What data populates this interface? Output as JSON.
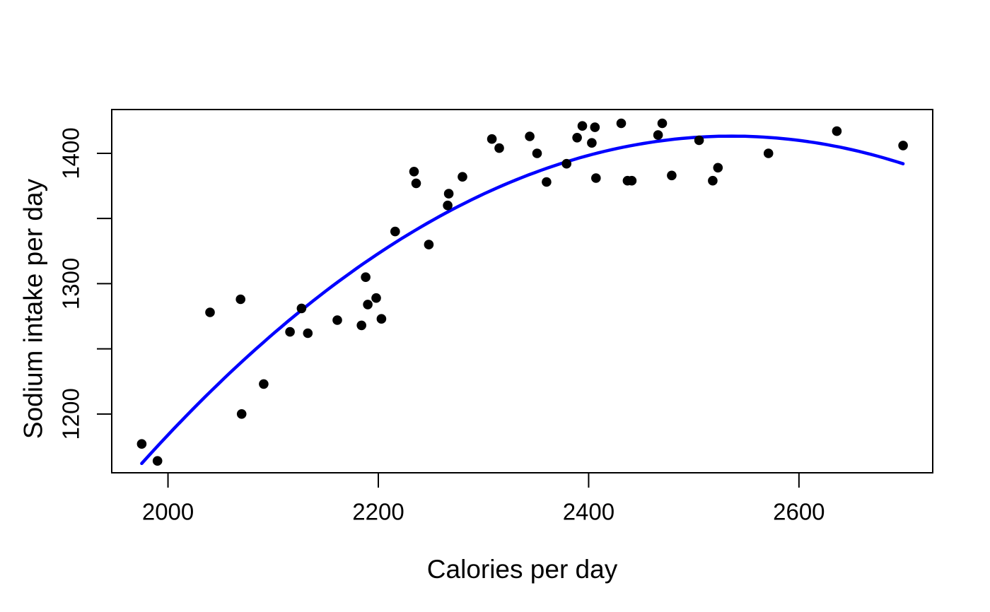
{
  "chart_data": {
    "type": "scatter",
    "title": "",
    "xlabel": "Calories per day",
    "ylabel": "Sodium intake per day",
    "xlim": [
      1946.5,
      2727.2
    ],
    "ylim": [
      1154.9,
      1433.6
    ],
    "x_ticks": [
      2000,
      2200,
      2400,
      2600
    ],
    "y_ticks_minor": [
      1200,
      1250,
      1300,
      1350,
      1400
    ],
    "y_ticks_labeled": [
      1200,
      1300,
      1400
    ],
    "grid": false,
    "legend": "none",
    "background_color": "#ffffff",
    "point_color": "#000000",
    "axis_color": "#000000",
    "trend_color": "#0000ff",
    "points": [
      [
        1975,
        1177
      ],
      [
        1990,
        1164
      ],
      [
        2040,
        1278
      ],
      [
        2069,
        1288
      ],
      [
        2070,
        1200
      ],
      [
        2091,
        1223
      ],
      [
        2116,
        1263
      ],
      [
        2127,
        1281
      ],
      [
        2133,
        1262
      ],
      [
        2161,
        1272
      ],
      [
        2184,
        1268
      ],
      [
        2188,
        1305
      ],
      [
        2190,
        1284
      ],
      [
        2198,
        1289
      ],
      [
        2203,
        1273
      ],
      [
        2216,
        1340
      ],
      [
        2234,
        1386
      ],
      [
        2236,
        1377
      ],
      [
        2248,
        1330
      ],
      [
        2266,
        1360
      ],
      [
        2267,
        1369
      ],
      [
        2280,
        1382
      ],
      [
        2308,
        1411
      ],
      [
        2315,
        1404
      ],
      [
        2344,
        1413
      ],
      [
        2351,
        1400
      ],
      [
        2360,
        1378
      ],
      [
        2379,
        1392
      ],
      [
        2389,
        1412
      ],
      [
        2394,
        1421
      ],
      [
        2403,
        1408
      ],
      [
        2406,
        1420
      ],
      [
        2407,
        1381
      ],
      [
        2431,
        1423
      ],
      [
        2437,
        1379
      ],
      [
        2441,
        1379
      ],
      [
        2466,
        1414
      ],
      [
        2470,
        1423
      ],
      [
        2479,
        1383
      ],
      [
        2505,
        1410
      ],
      [
        2518,
        1379
      ],
      [
        2523,
        1389
      ],
      [
        2571,
        1400
      ],
      [
        2636,
        1417
      ],
      [
        2699,
        1406
      ]
    ],
    "trend": {
      "kind": "quadratic",
      "vertex_x": 2536,
      "vertex_y": 1413.2,
      "a": -0.000798,
      "x_start": 1975,
      "x_end": 2699
    }
  }
}
